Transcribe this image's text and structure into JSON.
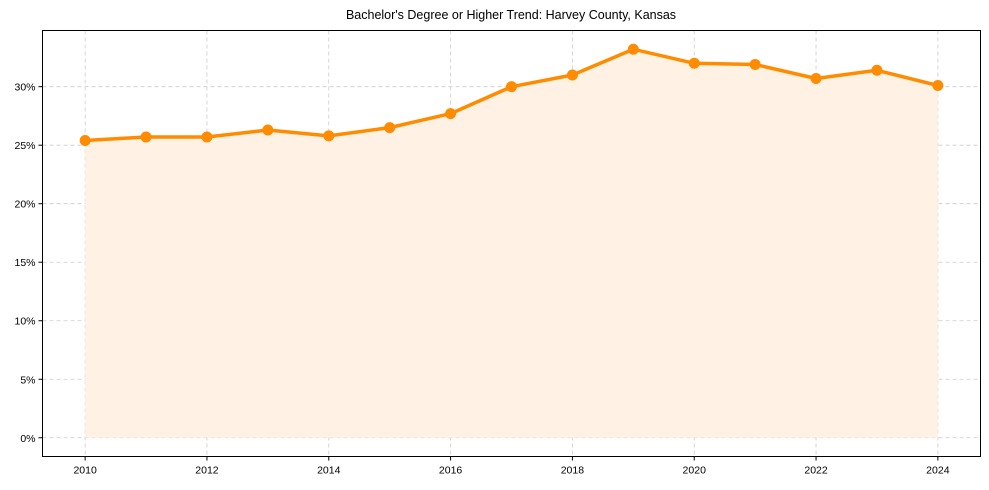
{
  "chart_data": {
    "type": "area",
    "title": "Bachelor's Degree or Higher Trend: Harvey County, Kansas",
    "xlabel": "",
    "ylabel": "",
    "x": [
      2010,
      2011,
      2012,
      2013,
      2014,
      2015,
      2016,
      2017,
      2018,
      2019,
      2020,
      2021,
      2022,
      2023,
      2024
    ],
    "series": [
      {
        "name": "Bachelor's Degree or Higher",
        "values": [
          25.4,
          25.7,
          25.7,
          26.3,
          25.8,
          26.5,
          27.7,
          30.0,
          31.0,
          33.2,
          32.0,
          31.9,
          30.7,
          31.4,
          30.1
        ],
        "unit": "%",
        "line_color": "#ff8c00",
        "fill_color": "#fff1e3",
        "marker": "circle"
      }
    ],
    "x_ticks": [
      2010,
      2012,
      2014,
      2016,
      2018,
      2020,
      2022,
      2024
    ],
    "x_tick_labels": [
      "2010",
      "2012",
      "2014",
      "2016",
      "2018",
      "2020",
      "2022",
      "2024"
    ],
    "y_ticks": [
      0,
      5,
      10,
      15,
      20,
      25,
      30
    ],
    "y_tick_labels": [
      "0%",
      "5%",
      "10%",
      "15%",
      "20%",
      "25%",
      "30%"
    ],
    "xlim": [
      2009.3,
      2024.7
    ],
    "ylim": [
      -1.6,
      34.8
    ],
    "grid": true,
    "grid_style": "dashed",
    "legend": "none"
  }
}
